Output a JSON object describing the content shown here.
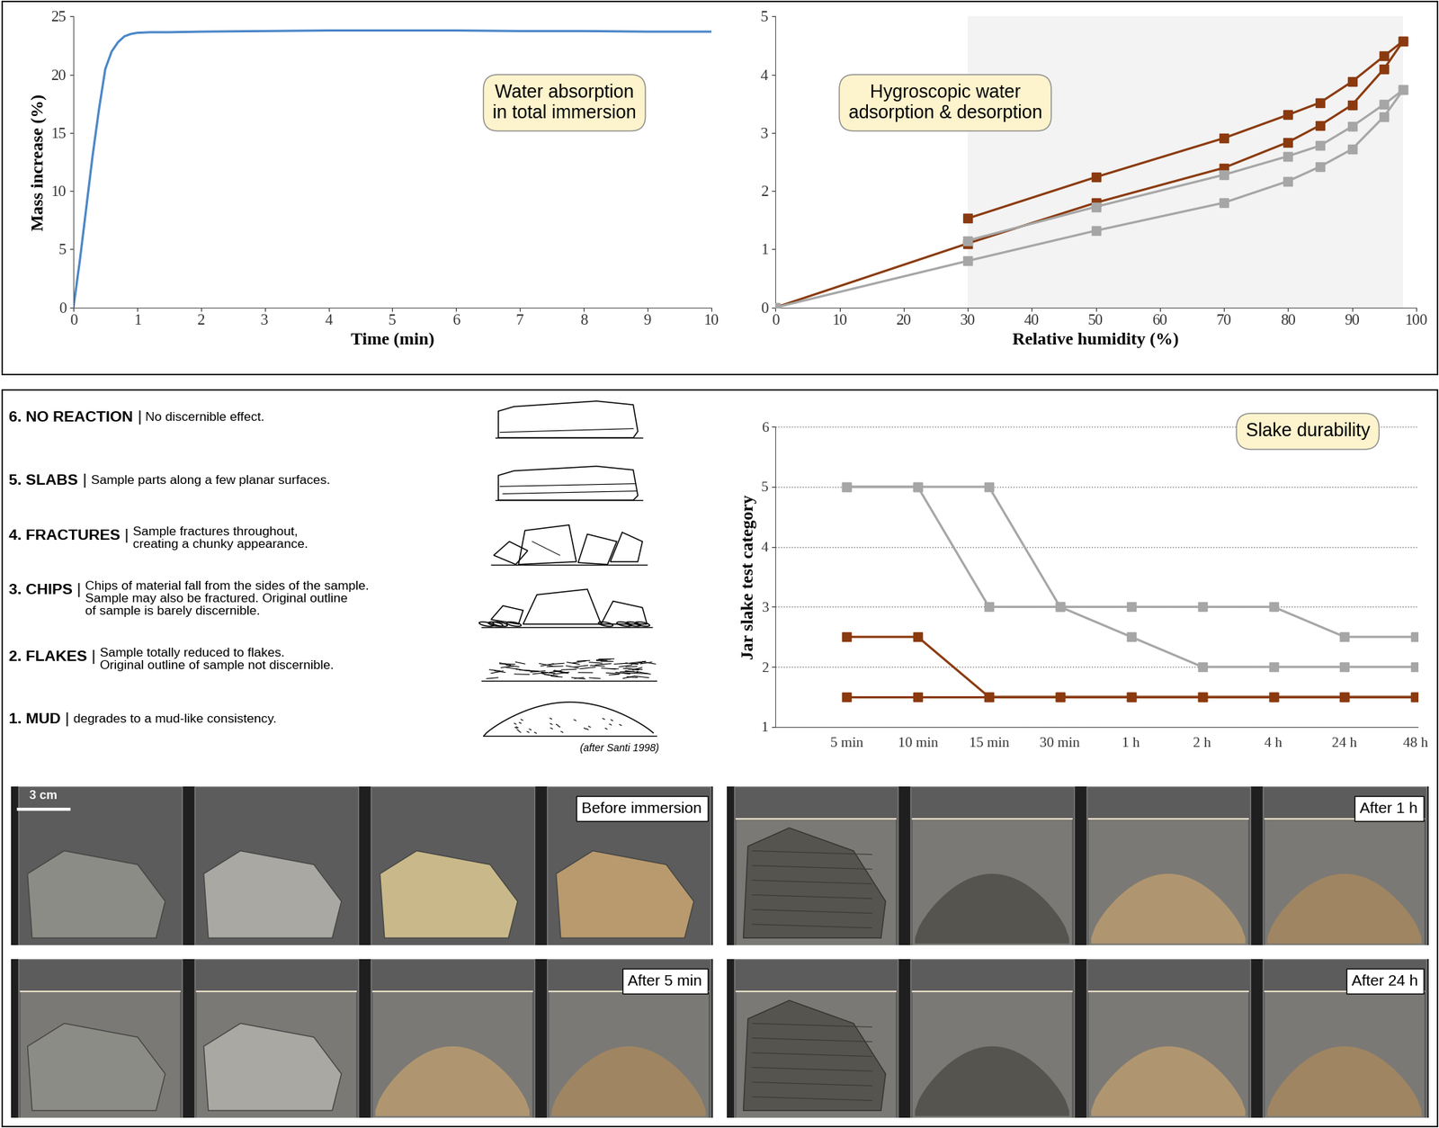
{
  "chart_data": [
    {
      "type": "line",
      "title": "Water absorption\nin total immersion",
      "xlabel": "Time (min)",
      "ylabel": "Mass increase (%)",
      "x": [
        0,
        0.1,
        0.2,
        0.3,
        0.4,
        0.5,
        0.6,
        0.7,
        0.8,
        0.9,
        1.0,
        1.2,
        1.5,
        2,
        3,
        4,
        5,
        6,
        7,
        8,
        9,
        10
      ],
      "values": [
        0,
        4,
        8.5,
        13,
        17,
        20.5,
        22,
        22.8,
        23.3,
        23.5,
        23.6,
        23.65,
        23.65,
        23.7,
        23.75,
        23.8,
        23.8,
        23.8,
        23.75,
        23.75,
        23.7,
        23.7
      ],
      "color": "#4a86c8",
      "xlim": [
        0,
        10
      ],
      "xticks": [
        0,
        1,
        2,
        3,
        4,
        5,
        6,
        7,
        8,
        9,
        10
      ],
      "ylim": [
        0,
        25
      ],
      "yticks": [
        0,
        5,
        10,
        15,
        20,
        25
      ]
    },
    {
      "type": "line",
      "title": "Hygroscopic water\nadsorption & desorption",
      "xlabel": "Relative humidity (%)",
      "xlim": [
        0,
        100
      ],
      "xticks": [
        0,
        10,
        20,
        30,
        40,
        50,
        60,
        70,
        80,
        90,
        100
      ],
      "ylim": [
        0,
        5
      ],
      "yticks": [
        0,
        1,
        2,
        3,
        4,
        5
      ],
      "marker": "square",
      "series": [
        {
          "color": "#8b3a0f",
          "x": [
            30,
            50,
            70,
            80,
            85,
            90,
            95,
            98
          ],
          "values": [
            1.53,
            2.24,
            2.91,
            3.31,
            3.52,
            3.88,
            4.32,
            4.58
          ]
        },
        {
          "color": "#8b3a0f",
          "x": [
            0,
            30,
            50,
            70,
            80,
            85,
            90,
            95,
            98
          ],
          "values": [
            0,
            1.1,
            1.8,
            2.4,
            2.84,
            3.13,
            3.48,
            4.1,
            4.58
          ]
        },
        {
          "color": "#a6a6a6",
          "x": [
            30,
            50,
            70,
            80,
            85,
            90,
            95,
            98
          ],
          "values": [
            1.15,
            1.73,
            2.28,
            2.6,
            2.78,
            3.11,
            3.49,
            3.74
          ]
        },
        {
          "color": "#a6a6a6",
          "x": [
            0,
            30,
            50,
            70,
            80,
            85,
            90,
            95,
            98
          ],
          "values": [
            0,
            0.8,
            1.32,
            1.8,
            2.17,
            2.42,
            2.72,
            3.28,
            3.74
          ]
        }
      ]
    },
    {
      "type": "line",
      "title": "Slake durability",
      "ylabel": "Jar slake test category",
      "categories": [
        "5 min",
        "10 min",
        "15 min",
        "30 min",
        "1 h",
        "2 h",
        "4 h",
        "24 h",
        "48 h"
      ],
      "ylim": [
        1,
        6
      ],
      "yticks": [
        1,
        2,
        3,
        4,
        5,
        6
      ],
      "grid": true,
      "marker": "square",
      "series": [
        {
          "color": "#a6a6a6",
          "values": [
            5,
            5,
            5,
            3,
            3,
            3,
            3,
            2.5,
            2.5
          ]
        },
        {
          "color": "#a6a6a6",
          "values": [
            5,
            5,
            3,
            3,
            2.5,
            2,
            2,
            2,
            2
          ]
        },
        {
          "color": "#8b3a0f",
          "values": [
            2.5,
            2.5,
            1.5,
            1.5,
            1.5,
            1.5,
            1.5,
            1.5,
            1.5
          ]
        },
        {
          "color": "#8b3a0f",
          "values": [
            1.5,
            1.5,
            1.5,
            1.5,
            1.5,
            1.5,
            1.5,
            1.5,
            1.5
          ]
        }
      ]
    }
  ],
  "classification": {
    "items": [
      {
        "label": "6. NO REACTION",
        "separator": "|",
        "description": "No discernible effect."
      },
      {
        "label": "5. SLABS",
        "separator": "|",
        "description": "Sample parts along a few planar surfaces."
      },
      {
        "label": "4. FRACTURES",
        "separator": "|",
        "description": "Sample fractures throughout,\ncreating a chunky appearance."
      },
      {
        "label": "3. CHIPS",
        "separator": "|",
        "description": "Chips of material fall from the sides of the sample.\nSample may also be fractured. Original outline\nof sample is barely discernible."
      },
      {
        "label": "2. FLAKES",
        "separator": "|",
        "description": "Sample totally reduced to flakes.\nOriginal outline of sample not discernible."
      },
      {
        "label": "1. MUD",
        "separator": "|",
        "description": "degrades to a mud-like consistency."
      }
    ],
    "credit": "(after Santi 1998)"
  },
  "photos": {
    "scale_bar": "3 cm",
    "panels": [
      "Before immersion",
      "After 5 min",
      "After 1 h",
      "After 24 h"
    ]
  }
}
